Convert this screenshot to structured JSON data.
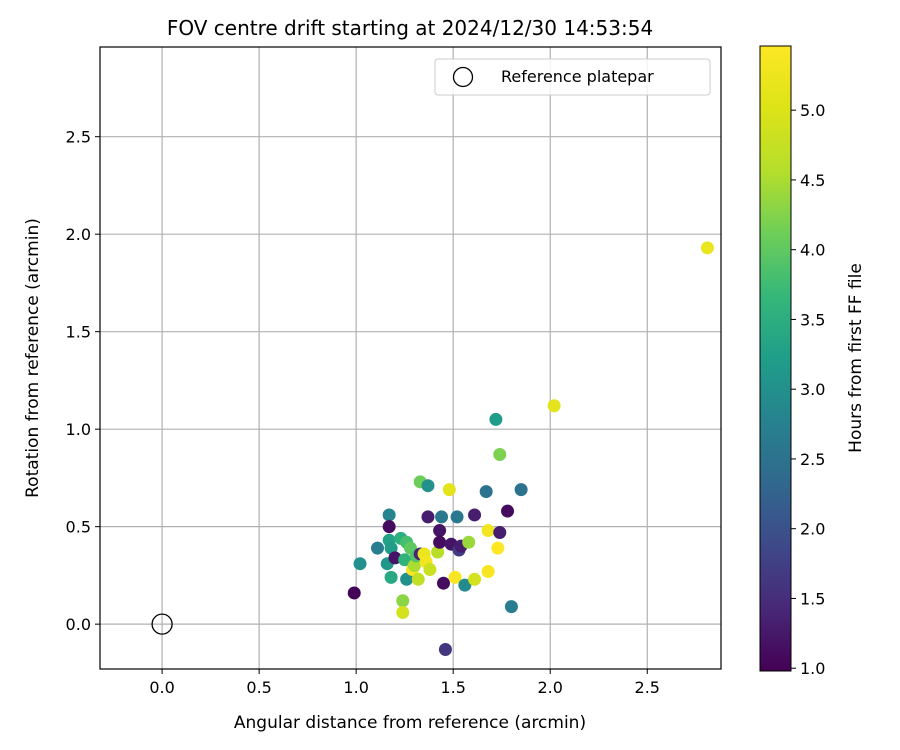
{
  "chart_data": {
    "type": "scatter",
    "title": "FOV centre drift starting at 2024/12/30 14:53:54",
    "xlabel": "Angular distance from reference (arcmin)",
    "ylabel": "Rotation from reference (arcmin)",
    "xlim": [
      -0.32,
      2.88
    ],
    "ylim": [
      -0.23,
      2.96
    ],
    "xticks": [
      0.0,
      0.5,
      1.0,
      1.5,
      2.0,
      2.5
    ],
    "xtick_labels": [
      "0.0",
      "0.5",
      "1.0",
      "1.5",
      "2.0",
      "2.5"
    ],
    "yticks": [
      0.0,
      0.5,
      1.0,
      1.5,
      2.0,
      2.5
    ],
    "ytick_labels": [
      "0.0",
      "0.5",
      "1.0",
      "1.5",
      "2.0",
      "2.5"
    ],
    "grid": true,
    "legend": {
      "label": "Reference platepar",
      "placement": "top-right",
      "marker": "open-circle"
    },
    "reference_point": {
      "x": 0.0,
      "y": 0.0
    },
    "colorbar": {
      "label": "Hours from first FF file",
      "colormap": "viridis",
      "range": [
        0.98,
        5.46
      ],
      "ticks": [
        1.0,
        1.5,
        2.0,
        2.5,
        3.0,
        3.5,
        4.0,
        4.5,
        5.0
      ],
      "tick_labels": [
        "1.0",
        "1.5",
        "2.0",
        "2.5",
        "3.0",
        "3.5",
        "4.0",
        "4.5",
        "5.0"
      ]
    },
    "points": [
      {
        "x": 0.99,
        "y": 0.16,
        "c": 1.0
      },
      {
        "x": 1.02,
        "y": 0.31,
        "c": 3.0
      },
      {
        "x": 1.11,
        "y": 0.39,
        "c": 2.7
      },
      {
        "x": 1.16,
        "y": 0.31,
        "c": 3.1
      },
      {
        "x": 1.17,
        "y": 0.56,
        "c": 2.8
      },
      {
        "x": 1.17,
        "y": 0.5,
        "c": 1.1
      },
      {
        "x": 1.17,
        "y": 0.43,
        "c": 3.3
      },
      {
        "x": 1.18,
        "y": 0.39,
        "c": 3.2
      },
      {
        "x": 1.18,
        "y": 0.24,
        "c": 3.4
      },
      {
        "x": 1.2,
        "y": 0.34,
        "c": 1.2
      },
      {
        "x": 1.23,
        "y": 0.44,
        "c": 3.5
      },
      {
        "x": 1.24,
        "y": 0.12,
        "c": 4.3
      },
      {
        "x": 1.24,
        "y": 0.06,
        "c": 4.9
      },
      {
        "x": 1.25,
        "y": 0.33,
        "c": 3.6
      },
      {
        "x": 1.26,
        "y": 0.42,
        "c": 3.8
      },
      {
        "x": 1.26,
        "y": 0.23,
        "c": 3.0
      },
      {
        "x": 1.28,
        "y": 0.39,
        "c": 4.0
      },
      {
        "x": 1.29,
        "y": 0.28,
        "c": 5.4
      },
      {
        "x": 1.3,
        "y": 0.3,
        "c": 4.5
      },
      {
        "x": 1.31,
        "y": 0.35,
        "c": 3.9
      },
      {
        "x": 1.32,
        "y": 0.23,
        "c": 4.7
      },
      {
        "x": 1.33,
        "y": 0.73,
        "c": 4.1
      },
      {
        "x": 1.33,
        "y": 0.36,
        "c": 1.4
      },
      {
        "x": 1.35,
        "y": 0.36,
        "c": 5.2
      },
      {
        "x": 1.36,
        "y": 0.32,
        "c": 5.3
      },
      {
        "x": 1.37,
        "y": 0.71,
        "c": 3.0
      },
      {
        "x": 1.37,
        "y": 0.55,
        "c": 1.3
      },
      {
        "x": 1.38,
        "y": 0.28,
        "c": 4.8
      },
      {
        "x": 1.42,
        "y": 0.37,
        "c": 4.6
      },
      {
        "x": 1.43,
        "y": 0.48,
        "c": 1.2
      },
      {
        "x": 1.43,
        "y": 0.42,
        "c": 1.1
      },
      {
        "x": 1.44,
        "y": 0.55,
        "c": 2.6
      },
      {
        "x": 1.45,
        "y": 0.21,
        "c": 1.1
      },
      {
        "x": 1.46,
        "y": -0.13,
        "c": 1.6
      },
      {
        "x": 1.48,
        "y": 0.69,
        "c": 5.1
      },
      {
        "x": 1.49,
        "y": 0.41,
        "c": 1.2
      },
      {
        "x": 1.51,
        "y": 0.24,
        "c": 5.4
      },
      {
        "x": 1.52,
        "y": 0.55,
        "c": 2.6
      },
      {
        "x": 1.53,
        "y": 0.38,
        "c": 1.7
      },
      {
        "x": 1.54,
        "y": 0.4,
        "c": 1.3
      },
      {
        "x": 1.56,
        "y": 0.2,
        "c": 2.9
      },
      {
        "x": 1.58,
        "y": 0.42,
        "c": 4.4
      },
      {
        "x": 1.61,
        "y": 0.56,
        "c": 1.3
      },
      {
        "x": 1.61,
        "y": 0.23,
        "c": 4.9
      },
      {
        "x": 1.67,
        "y": 0.68,
        "c": 2.5
      },
      {
        "x": 1.68,
        "y": 0.48,
        "c": 5.3
      },
      {
        "x": 1.68,
        "y": 0.27,
        "c": 5.4
      },
      {
        "x": 1.72,
        "y": 1.05,
        "c": 3.2
      },
      {
        "x": 1.73,
        "y": 0.39,
        "c": 5.45
      },
      {
        "x": 1.74,
        "y": 0.47,
        "c": 1.3
      },
      {
        "x": 1.74,
        "y": 0.87,
        "c": 4.2
      },
      {
        "x": 1.78,
        "y": 0.58,
        "c": 1.1
      },
      {
        "x": 1.8,
        "y": 0.09,
        "c": 2.7
      },
      {
        "x": 1.85,
        "y": 0.69,
        "c": 2.5
      },
      {
        "x": 2.02,
        "y": 1.12,
        "c": 5.1
      },
      {
        "x": 2.81,
        "y": 1.93,
        "c": 5.2
      }
    ]
  }
}
